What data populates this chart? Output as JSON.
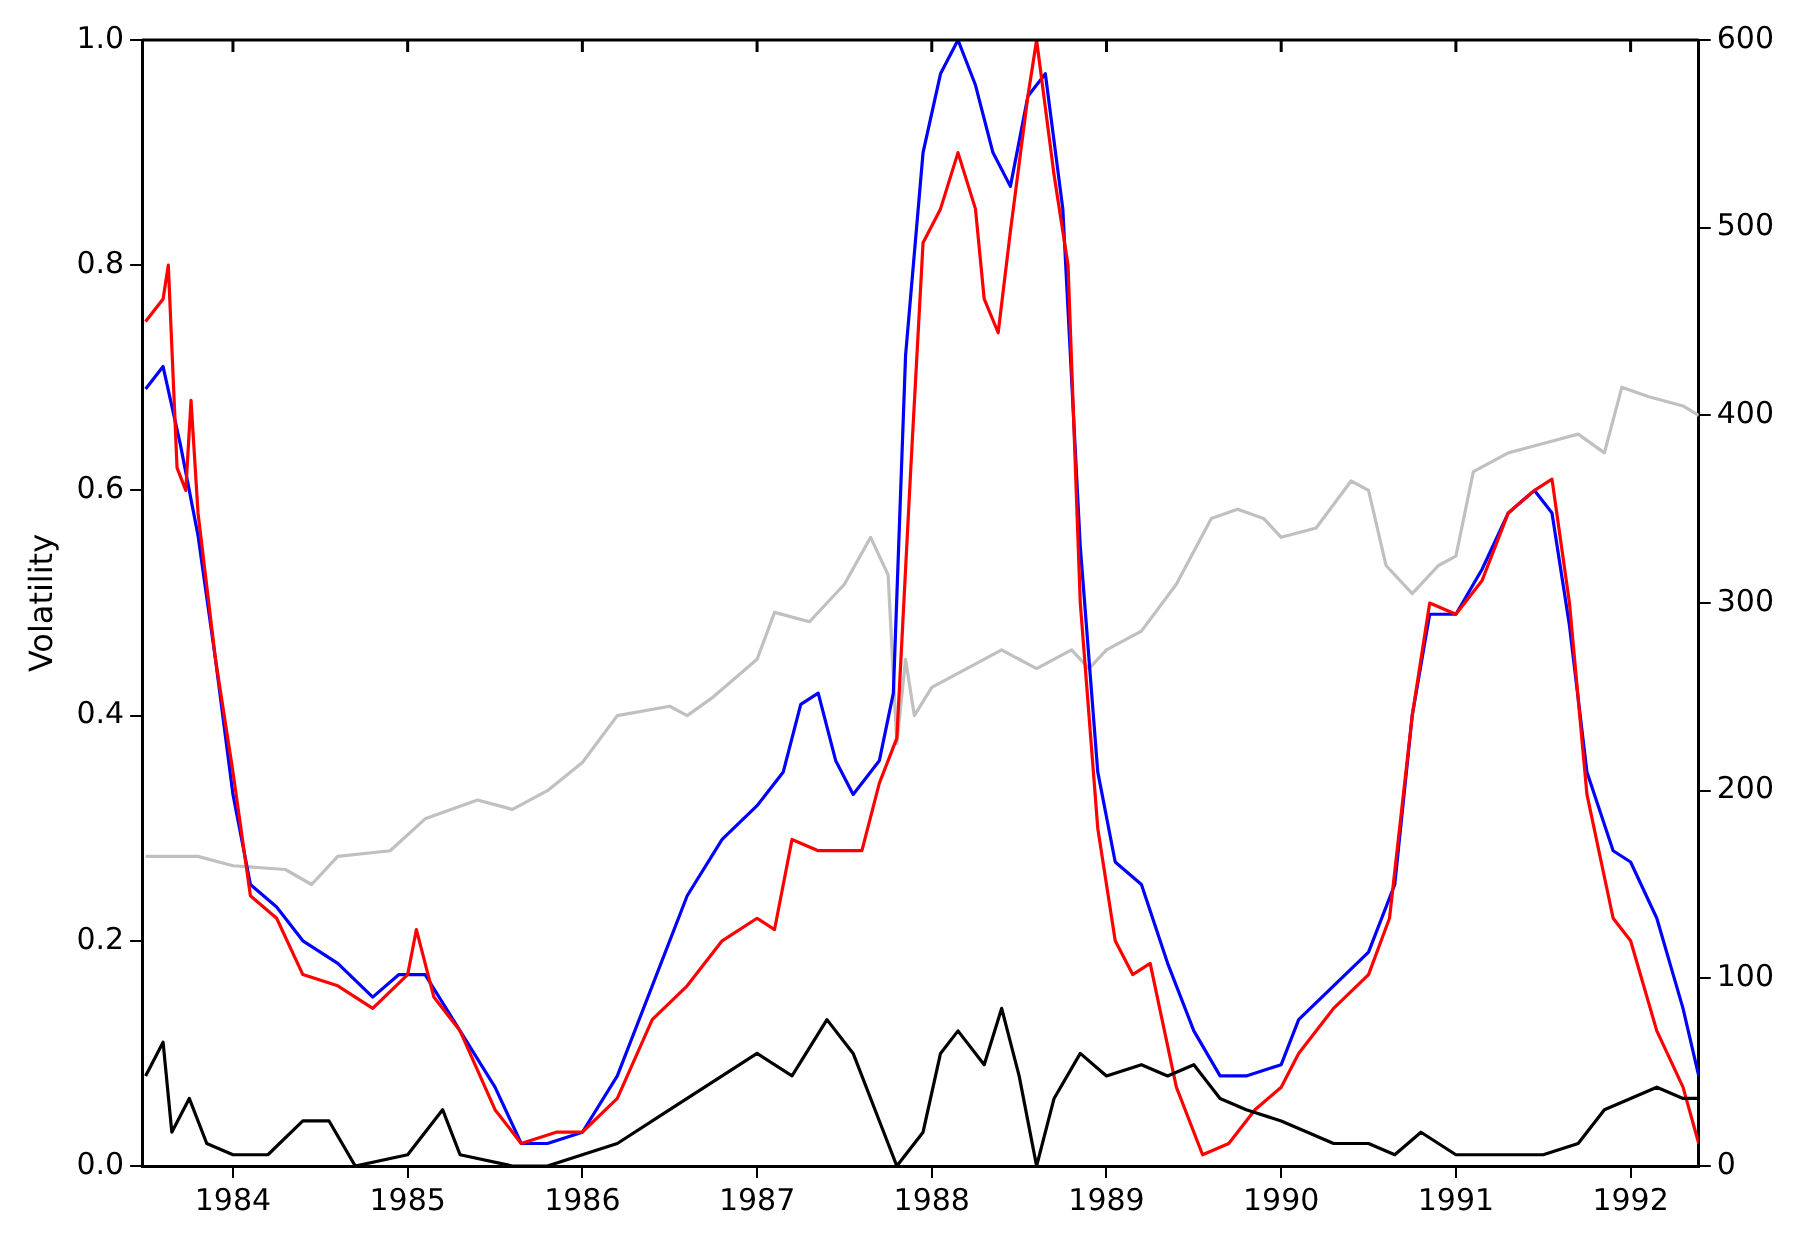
{
  "chart_data": {
    "type": "line",
    "ylabel": "Volatility",
    "xlim": [
      1983.48,
      1992.39
    ],
    "xticks": [
      1984,
      1985,
      1986,
      1987,
      1988,
      1989,
      1990,
      1991,
      1992
    ],
    "ylim": [
      0,
      1
    ],
    "yticks": [
      {
        "value": 0,
        "label": "0.0"
      },
      {
        "value": 0.2,
        "label": "0.2"
      },
      {
        "value": 0.4,
        "label": "0.4"
      },
      {
        "value": 0.6,
        "label": "0.6"
      },
      {
        "value": 0.8,
        "label": "0.8"
      },
      {
        "value": 1,
        "label": "1.0"
      }
    ],
    "y2lim": [
      0,
      600
    ],
    "y2ticks": [
      0,
      100,
      200,
      300,
      400,
      500,
      600
    ],
    "grid": false,
    "legend": false,
    "marker": "none",
    "line_style": "solid",
    "series": [
      {
        "color": "#c0c0c0",
        "axis": "y2",
        "x": [
          1983.5,
          1983.8,
          1984.0,
          1984.3,
          1984.45,
          1984.6,
          1984.9,
          1985.1,
          1985.4,
          1985.6,
          1985.8,
          1986.0,
          1986.2,
          1986.5,
          1986.6,
          1986.75,
          1987.0,
          1987.1,
          1987.3,
          1987.5,
          1987.65,
          1987.75,
          1987.8,
          1987.85,
          1987.9,
          1988.0,
          1988.2,
          1988.4,
          1988.6,
          1988.8,
          1988.9,
          1989.0,
          1989.2,
          1989.4,
          1989.6,
          1989.75,
          1989.9,
          1990.0,
          1990.2,
          1990.4,
          1990.5,
          1990.6,
          1990.75,
          1990.9,
          1991.0,
          1991.1,
          1991.3,
          1991.5,
          1991.7,
          1991.85,
          1991.95,
          1992.1,
          1992.3,
          1992.39
        ],
        "values": [
          165,
          165,
          160,
          158,
          150,
          165,
          168,
          185,
          195,
          190,
          200,
          215,
          240,
          245,
          240,
          250,
          270,
          295,
          290,
          310,
          335,
          315,
          225,
          270,
          240,
          255,
          265,
          275,
          265,
          275,
          265,
          275,
          285,
          310,
          345,
          350,
          345,
          335,
          340,
          365,
          360,
          320,
          305,
          320,
          325,
          370,
          380,
          385,
          390,
          380,
          415,
          410,
          405,
          400
        ]
      },
      {
        "color": "#0000ff",
        "x": [
          1983.5,
          1983.6,
          1983.7,
          1983.8,
          1983.9,
          1984.0,
          1984.1,
          1984.25,
          1984.4,
          1984.6,
          1984.8,
          1984.95,
          1985.1,
          1985.3,
          1985.5,
          1985.65,
          1985.8,
          1986.0,
          1986.2,
          1986.4,
          1986.6,
          1986.8,
          1987.0,
          1987.15,
          1987.25,
          1987.35,
          1987.45,
          1987.55,
          1987.7,
          1987.78,
          1987.85,
          1987.95,
          1988.05,
          1988.15,
          1988.25,
          1988.35,
          1988.45,
          1988.55,
          1988.65,
          1988.75,
          1988.85,
          1988.95,
          1989.05,
          1989.2,
          1989.35,
          1989.5,
          1989.65,
          1989.8,
          1990.0,
          1990.1,
          1990.3,
          1990.5,
          1990.65,
          1990.75,
          1990.85,
          1991.0,
          1991.15,
          1991.3,
          1991.45,
          1991.55,
          1991.65,
          1991.75,
          1991.9,
          1992.0,
          1992.15,
          1992.3,
          1992.39
        ],
        "values": [
          0.69,
          0.71,
          0.64,
          0.56,
          0.45,
          0.33,
          0.25,
          0.23,
          0.2,
          0.18,
          0.15,
          0.17,
          0.17,
          0.12,
          0.07,
          0.02,
          0.02,
          0.03,
          0.08,
          0.16,
          0.24,
          0.29,
          0.32,
          0.35,
          0.41,
          0.42,
          0.36,
          0.33,
          0.36,
          0.42,
          0.72,
          0.9,
          0.97,
          1.0,
          0.96,
          0.9,
          0.87,
          0.95,
          0.97,
          0.85,
          0.55,
          0.35,
          0.27,
          0.25,
          0.18,
          0.12,
          0.08,
          0.08,
          0.09,
          0.13,
          0.16,
          0.19,
          0.25,
          0.4,
          0.49,
          0.49,
          0.53,
          0.58,
          0.6,
          0.58,
          0.48,
          0.35,
          0.28,
          0.27,
          0.22,
          0.14,
          0.08
        ]
      },
      {
        "color": "#ff0000",
        "x": [
          1983.5,
          1983.6,
          1983.63,
          1983.68,
          1983.73,
          1983.76,
          1983.8,
          1983.9,
          1984.0,
          1984.1,
          1984.25,
          1984.4,
          1984.6,
          1984.8,
          1985.0,
          1985.05,
          1985.15,
          1985.3,
          1985.5,
          1985.65,
          1985.85,
          1986.0,
          1986.2,
          1986.4,
          1986.6,
          1986.8,
          1987.0,
          1987.1,
          1987.2,
          1987.35,
          1987.5,
          1987.6,
          1987.7,
          1987.8,
          1987.88,
          1987.95,
          1988.05,
          1988.15,
          1988.25,
          1988.3,
          1988.38,
          1988.45,
          1988.55,
          1988.6,
          1988.7,
          1988.78,
          1988.85,
          1988.95,
          1989.05,
          1989.15,
          1989.25,
          1989.4,
          1989.55,
          1989.7,
          1989.85,
          1990.0,
          1990.1,
          1990.3,
          1990.5,
          1990.62,
          1990.75,
          1990.85,
          1991.0,
          1991.15,
          1991.3,
          1991.45,
          1991.55,
          1991.65,
          1991.75,
          1991.9,
          1992.0,
          1992.15,
          1992.3,
          1992.39
        ],
        "values": [
          0.75,
          0.77,
          0.8,
          0.62,
          0.6,
          0.68,
          0.58,
          0.45,
          0.35,
          0.24,
          0.22,
          0.17,
          0.16,
          0.14,
          0.17,
          0.21,
          0.15,
          0.12,
          0.05,
          0.02,
          0.03,
          0.03,
          0.06,
          0.13,
          0.16,
          0.2,
          0.22,
          0.21,
          0.29,
          0.28,
          0.28,
          0.28,
          0.34,
          0.38,
          0.62,
          0.82,
          0.85,
          0.9,
          0.85,
          0.77,
          0.74,
          0.83,
          0.95,
          1.0,
          0.88,
          0.8,
          0.5,
          0.3,
          0.2,
          0.17,
          0.18,
          0.07,
          0.01,
          0.02,
          0.05,
          0.07,
          0.1,
          0.14,
          0.17,
          0.22,
          0.4,
          0.5,
          0.49,
          0.52,
          0.58,
          0.6,
          0.61,
          0.5,
          0.33,
          0.22,
          0.2,
          0.12,
          0.07,
          0.02
        ]
      },
      {
        "color": "#000000",
        "x": [
          1983.5,
          1983.6,
          1983.65,
          1983.75,
          1983.85,
          1984.0,
          1984.2,
          1984.4,
          1984.55,
          1984.7,
          1985.0,
          1985.2,
          1985.3,
          1985.6,
          1985.8,
          1986.0,
          1986.2,
          1986.5,
          1986.8,
          1987.0,
          1987.2,
          1987.4,
          1987.55,
          1987.7,
          1987.8,
          1987.95,
          1988.05,
          1988.15,
          1988.3,
          1988.4,
          1988.5,
          1988.6,
          1988.7,
          1988.85,
          1989.0,
          1989.2,
          1989.35,
          1989.5,
          1989.65,
          1989.8,
          1990.0,
          1990.3,
          1990.5,
          1990.65,
          1990.8,
          1991.0,
          1991.3,
          1991.5,
          1991.7,
          1991.85,
          1992.0,
          1992.15,
          1992.3,
          1992.39
        ],
        "values": [
          0.08,
          0.11,
          0.03,
          0.06,
          0.02,
          0.01,
          0.01,
          0.04,
          0.04,
          0.0,
          0.01,
          0.05,
          0.01,
          0.0,
          0.0,
          0.01,
          0.02,
          0.05,
          0.08,
          0.1,
          0.08,
          0.13,
          0.1,
          0.04,
          0.0,
          0.03,
          0.1,
          0.12,
          0.09,
          0.14,
          0.08,
          0.0,
          0.06,
          0.1,
          0.08,
          0.09,
          0.08,
          0.09,
          0.06,
          0.05,
          0.04,
          0.02,
          0.02,
          0.01,
          0.03,
          0.01,
          0.01,
          0.01,
          0.02,
          0.05,
          0.06,
          0.07,
          0.06,
          0.06
        ]
      }
    ]
  }
}
